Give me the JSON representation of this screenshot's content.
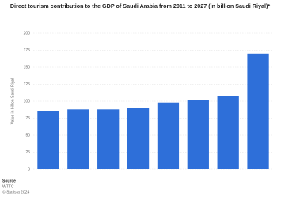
{
  "chart_data": {
    "type": "bar",
    "title": "Direct tourism contribution to the GDP of Saudi Arabia from 2011 to 2027 (in billion Saudi Riyal)*",
    "y_label": "Value in billion Saudi Riyal",
    "categories": [
      null,
      null,
      null,
      null,
      null,
      null,
      null,
      null
    ],
    "values": [
      86,
      88,
      88,
      90,
      98,
      102,
      108,
      170
    ],
    "color": "#2e6fd9",
    "ylim": [
      0,
      200
    ],
    "yticks": [
      0,
      25,
      50,
      75,
      100,
      125,
      150,
      175,
      200
    ],
    "grid": true,
    "source_label": "Source",
    "source": "WTTC",
    "copyright": "© Statista 2024"
  }
}
